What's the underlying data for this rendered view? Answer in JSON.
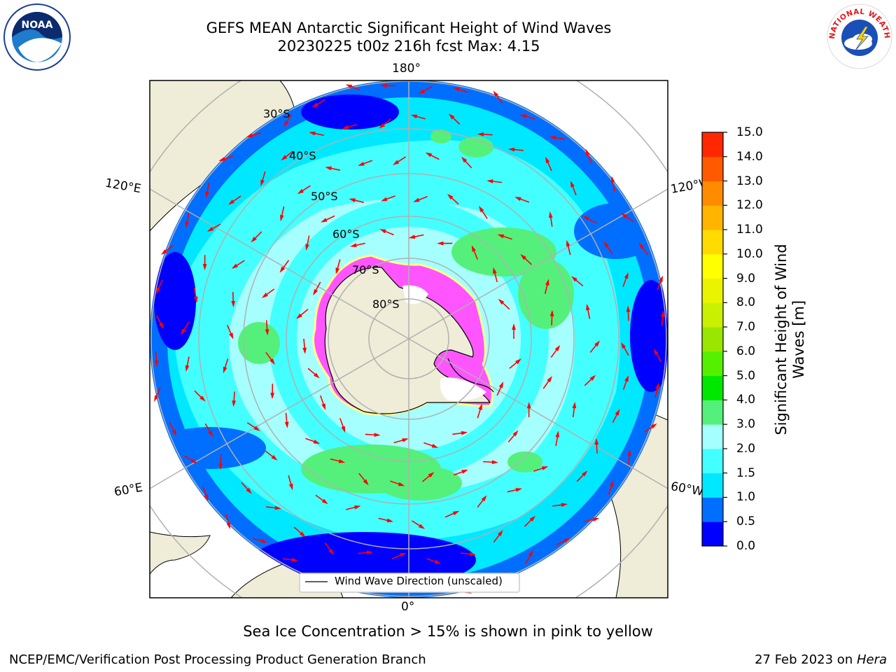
{
  "title": {
    "line1": "GEFS MEAN Antarctic Significant Height of Wind Waves",
    "line2": "20230225 t00z 216h fcst   Max: 4.15"
  },
  "map": {
    "projection": "south-polar-stereographic",
    "lon_labels": {
      "top": "180°",
      "bottom": "0°",
      "upper_left": "120°E",
      "lower_left": "60°E",
      "upper_right": "120°W",
      "lower_right": "60°W"
    },
    "lat_labels": [
      "30°S",
      "40°S",
      "50°S",
      "60°S",
      "70°S",
      "80°S"
    ],
    "legend_label": "Wind Wave Direction (unscaled)",
    "arrow_color": "#ff0000",
    "land_color": "#efedd8",
    "sea_ice_colors": [
      "#ff44ff",
      "#ff99ff",
      "#ffff88"
    ]
  },
  "colorbar": {
    "label_line1": "Significant Height of Wind",
    "label_line2": "Waves [m]",
    "ticks": [
      "0.0",
      "0.5",
      "1.0",
      "1.5",
      "2.0",
      "3.0",
      "4.0",
      "5.0",
      "6.0",
      "7.0",
      "8.0",
      "9.0",
      "10.0",
      "11.0",
      "12.0",
      "13.0",
      "14.0",
      "15.0"
    ],
    "colors": [
      "#0000ff",
      "#006eff",
      "#00e8ff",
      "#44ffff",
      "#a6ffff",
      "#55f07b",
      "#00e700",
      "#55f000",
      "#99e600",
      "#c8f000",
      "#eaf400",
      "#ffff00",
      "#ffdb00",
      "#ffb400",
      "#ff8c00",
      "#ff5a00",
      "#ff2800"
    ]
  },
  "caption": "Sea Ice Concentration > 15% is shown in pink to yellow",
  "footer": {
    "left": "NCEP/EMC/Verification Post Processing Product Generation Branch",
    "right_prefix": "27 Feb 2023 on ",
    "right_host": "Hera"
  },
  "logos": {
    "left": "NOAA",
    "right": "NATIONAL WEATHER SERVICE"
  }
}
